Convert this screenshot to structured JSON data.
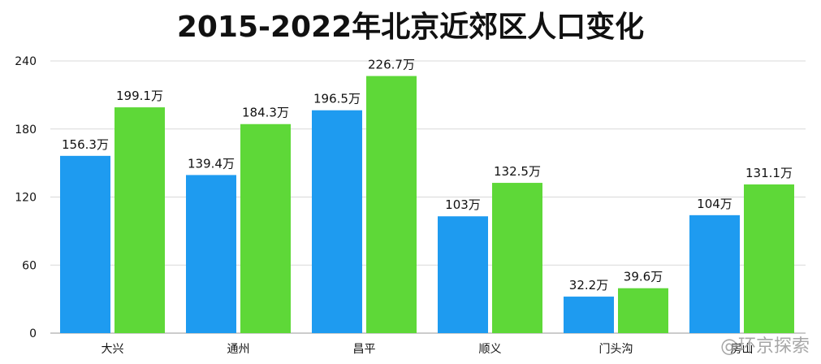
{
  "chart_data": {
    "type": "bar",
    "title": "2015-2022年北京近郊区人口变化",
    "categories": [
      "大兴",
      "通州",
      "昌平",
      "顺义",
      "门头沟",
      "房山"
    ],
    "series": [
      {
        "color": "#1E9BF0",
        "values": [
          156.3,
          139.4,
          196.5,
          103,
          32.2,
          104
        ],
        "labels": [
          "156.3万",
          "139.4万",
          "196.5万",
          "103万",
          "32.2万",
          "104万"
        ]
      },
      {
        "color": "#5ED838",
        "values": [
          199.1,
          184.3,
          226.7,
          132.5,
          39.6,
          131.1
        ],
        "labels": [
          "199.1万",
          "184.3万",
          "226.7万",
          "132.5万",
          "39.6万",
          "131.1万"
        ]
      }
    ],
    "yticks": [
      "0",
      "60",
      "120",
      "180",
      "240"
    ],
    "ylim": [
      0,
      240
    ],
    "grid": true,
    "xlabel": "",
    "ylabel": ""
  },
  "watermark": "@环京探索"
}
